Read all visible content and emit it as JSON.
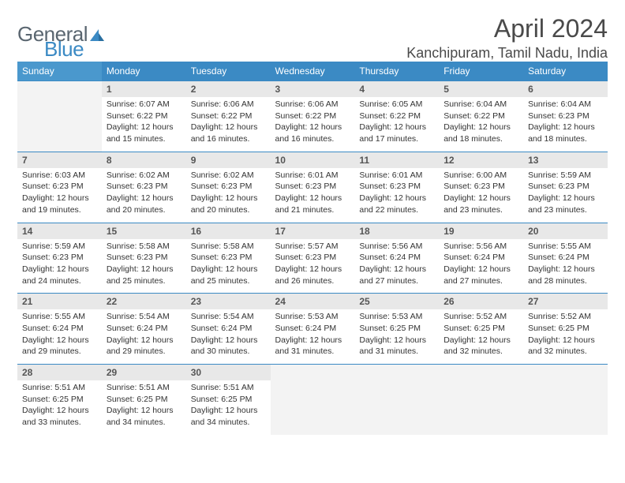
{
  "logo": {
    "general": "General",
    "blue": "Blue"
  },
  "title": "April 2024",
  "location": "Kanchipuram, Tamil Nadu, India",
  "colors": {
    "header_bg": "#3b8ac4",
    "header_bg_first": "#4a98cd",
    "daynum_bg": "#e8e8e8",
    "row_border": "#3b8ac4"
  },
  "daynames": [
    "Sunday",
    "Monday",
    "Tuesday",
    "Wednesday",
    "Thursday",
    "Friday",
    "Saturday"
  ],
  "weeks": [
    {
      "nums": [
        "",
        "1",
        "2",
        "3",
        "4",
        "5",
        "6"
      ],
      "cells": [
        null,
        {
          "sunrise": "Sunrise: 6:07 AM",
          "sunset": "Sunset: 6:22 PM",
          "day1": "Daylight: 12 hours",
          "day2": "and 15 minutes."
        },
        {
          "sunrise": "Sunrise: 6:06 AM",
          "sunset": "Sunset: 6:22 PM",
          "day1": "Daylight: 12 hours",
          "day2": "and 16 minutes."
        },
        {
          "sunrise": "Sunrise: 6:06 AM",
          "sunset": "Sunset: 6:22 PM",
          "day1": "Daylight: 12 hours",
          "day2": "and 16 minutes."
        },
        {
          "sunrise": "Sunrise: 6:05 AM",
          "sunset": "Sunset: 6:22 PM",
          "day1": "Daylight: 12 hours",
          "day2": "and 17 minutes."
        },
        {
          "sunrise": "Sunrise: 6:04 AM",
          "sunset": "Sunset: 6:22 PM",
          "day1": "Daylight: 12 hours",
          "day2": "and 18 minutes."
        },
        {
          "sunrise": "Sunrise: 6:04 AM",
          "sunset": "Sunset: 6:23 PM",
          "day1": "Daylight: 12 hours",
          "day2": "and 18 minutes."
        }
      ]
    },
    {
      "nums": [
        "7",
        "8",
        "9",
        "10",
        "11",
        "12",
        "13"
      ],
      "cells": [
        {
          "sunrise": "Sunrise: 6:03 AM",
          "sunset": "Sunset: 6:23 PM",
          "day1": "Daylight: 12 hours",
          "day2": "and 19 minutes."
        },
        {
          "sunrise": "Sunrise: 6:02 AM",
          "sunset": "Sunset: 6:23 PM",
          "day1": "Daylight: 12 hours",
          "day2": "and 20 minutes."
        },
        {
          "sunrise": "Sunrise: 6:02 AM",
          "sunset": "Sunset: 6:23 PM",
          "day1": "Daylight: 12 hours",
          "day2": "and 20 minutes."
        },
        {
          "sunrise": "Sunrise: 6:01 AM",
          "sunset": "Sunset: 6:23 PM",
          "day1": "Daylight: 12 hours",
          "day2": "and 21 minutes."
        },
        {
          "sunrise": "Sunrise: 6:01 AM",
          "sunset": "Sunset: 6:23 PM",
          "day1": "Daylight: 12 hours",
          "day2": "and 22 minutes."
        },
        {
          "sunrise": "Sunrise: 6:00 AM",
          "sunset": "Sunset: 6:23 PM",
          "day1": "Daylight: 12 hours",
          "day2": "and 23 minutes."
        },
        {
          "sunrise": "Sunrise: 5:59 AM",
          "sunset": "Sunset: 6:23 PM",
          "day1": "Daylight: 12 hours",
          "day2": "and 23 minutes."
        }
      ]
    },
    {
      "nums": [
        "14",
        "15",
        "16",
        "17",
        "18",
        "19",
        "20"
      ],
      "cells": [
        {
          "sunrise": "Sunrise: 5:59 AM",
          "sunset": "Sunset: 6:23 PM",
          "day1": "Daylight: 12 hours",
          "day2": "and 24 minutes."
        },
        {
          "sunrise": "Sunrise: 5:58 AM",
          "sunset": "Sunset: 6:23 PM",
          "day1": "Daylight: 12 hours",
          "day2": "and 25 minutes."
        },
        {
          "sunrise": "Sunrise: 5:58 AM",
          "sunset": "Sunset: 6:23 PM",
          "day1": "Daylight: 12 hours",
          "day2": "and 25 minutes."
        },
        {
          "sunrise": "Sunrise: 5:57 AM",
          "sunset": "Sunset: 6:23 PM",
          "day1": "Daylight: 12 hours",
          "day2": "and 26 minutes."
        },
        {
          "sunrise": "Sunrise: 5:56 AM",
          "sunset": "Sunset: 6:24 PM",
          "day1": "Daylight: 12 hours",
          "day2": "and 27 minutes."
        },
        {
          "sunrise": "Sunrise: 5:56 AM",
          "sunset": "Sunset: 6:24 PM",
          "day1": "Daylight: 12 hours",
          "day2": "and 27 minutes."
        },
        {
          "sunrise": "Sunrise: 5:55 AM",
          "sunset": "Sunset: 6:24 PM",
          "day1": "Daylight: 12 hours",
          "day2": "and 28 minutes."
        }
      ]
    },
    {
      "nums": [
        "21",
        "22",
        "23",
        "24",
        "25",
        "26",
        "27"
      ],
      "cells": [
        {
          "sunrise": "Sunrise: 5:55 AM",
          "sunset": "Sunset: 6:24 PM",
          "day1": "Daylight: 12 hours",
          "day2": "and 29 minutes."
        },
        {
          "sunrise": "Sunrise: 5:54 AM",
          "sunset": "Sunset: 6:24 PM",
          "day1": "Daylight: 12 hours",
          "day2": "and 29 minutes."
        },
        {
          "sunrise": "Sunrise: 5:54 AM",
          "sunset": "Sunset: 6:24 PM",
          "day1": "Daylight: 12 hours",
          "day2": "and 30 minutes."
        },
        {
          "sunrise": "Sunrise: 5:53 AM",
          "sunset": "Sunset: 6:24 PM",
          "day1": "Daylight: 12 hours",
          "day2": "and 31 minutes."
        },
        {
          "sunrise": "Sunrise: 5:53 AM",
          "sunset": "Sunset: 6:25 PM",
          "day1": "Daylight: 12 hours",
          "day2": "and 31 minutes."
        },
        {
          "sunrise": "Sunrise: 5:52 AM",
          "sunset": "Sunset: 6:25 PM",
          "day1": "Daylight: 12 hours",
          "day2": "and 32 minutes."
        },
        {
          "sunrise": "Sunrise: 5:52 AM",
          "sunset": "Sunset: 6:25 PM",
          "day1": "Daylight: 12 hours",
          "day2": "and 32 minutes."
        }
      ]
    },
    {
      "nums": [
        "28",
        "29",
        "30",
        "",
        "",
        "",
        ""
      ],
      "cells": [
        {
          "sunrise": "Sunrise: 5:51 AM",
          "sunset": "Sunset: 6:25 PM",
          "day1": "Daylight: 12 hours",
          "day2": "and 33 minutes."
        },
        {
          "sunrise": "Sunrise: 5:51 AM",
          "sunset": "Sunset: 6:25 PM",
          "day1": "Daylight: 12 hours",
          "day2": "and 34 minutes."
        },
        {
          "sunrise": "Sunrise: 5:51 AM",
          "sunset": "Sunset: 6:25 PM",
          "day1": "Daylight: 12 hours",
          "day2": "and 34 minutes."
        },
        null,
        null,
        null,
        null
      ]
    }
  ]
}
